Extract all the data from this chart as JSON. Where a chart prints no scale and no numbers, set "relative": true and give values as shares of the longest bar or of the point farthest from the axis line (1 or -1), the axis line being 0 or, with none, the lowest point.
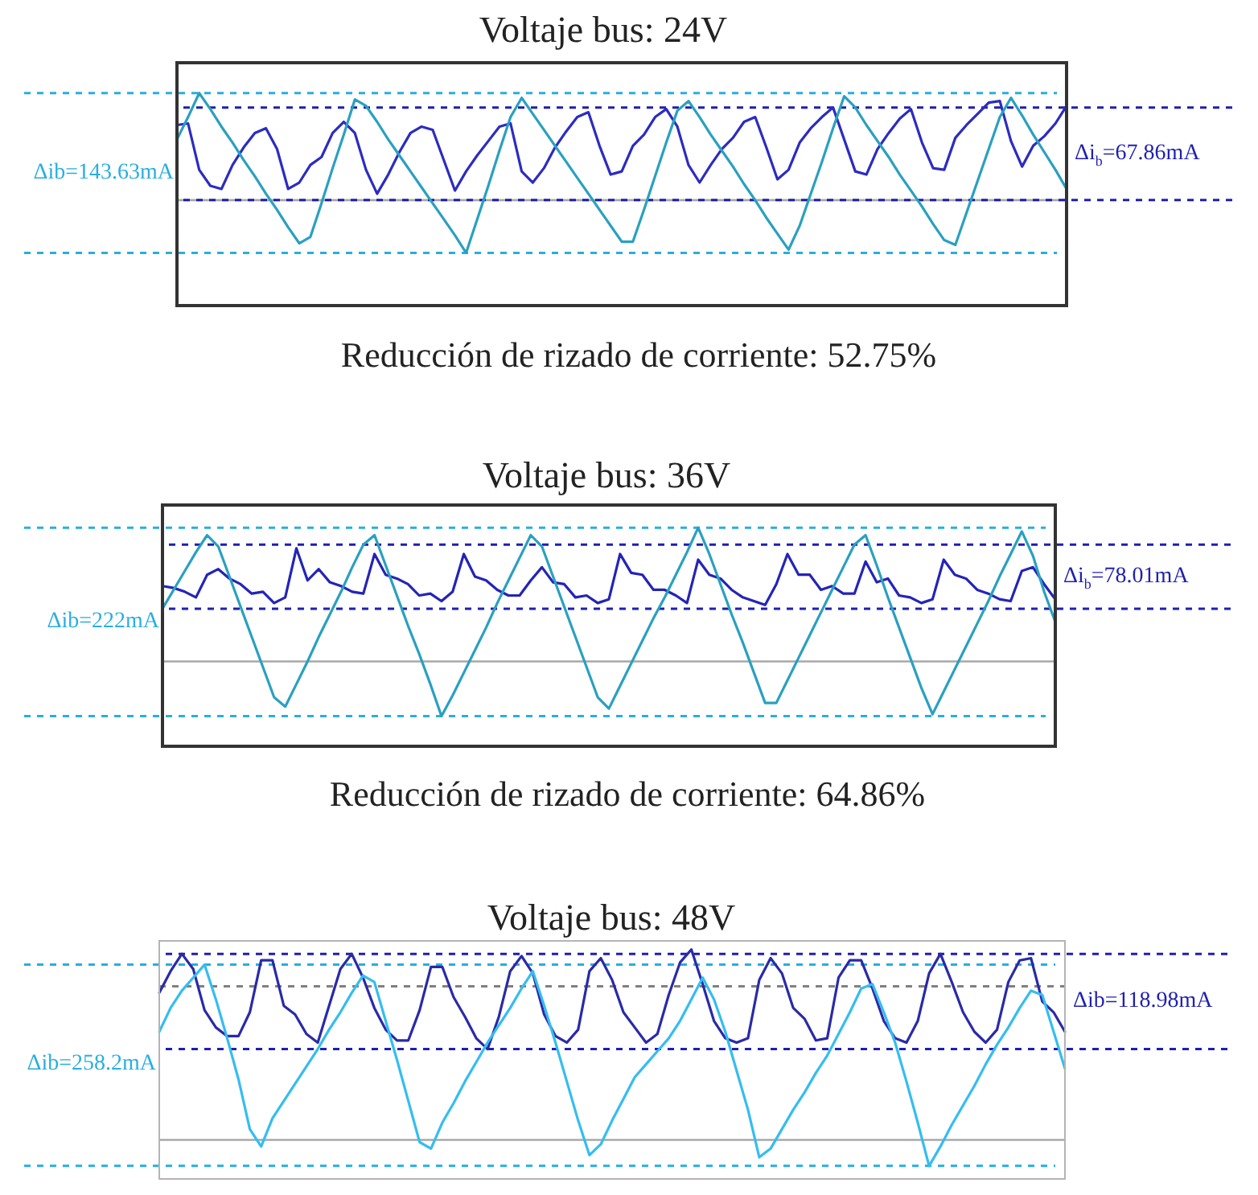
{
  "chart_data": [
    {
      "type": "line",
      "title": "Voltaje bus: 24V",
      "relative": true,
      "categories": [
        null,
        null,
        null,
        null,
        null,
        null,
        null,
        null,
        null,
        null,
        null,
        null,
        null,
        null,
        null,
        null,
        null,
        null,
        null,
        null,
        null,
        null,
        null,
        null,
        null,
        null,
        null,
        null,
        null,
        null,
        null,
        null,
        null,
        null,
        null,
        null,
        null,
        null,
        null,
        null,
        null,
        null,
        null,
        null,
        null,
        null,
        null,
        null,
        null,
        null,
        null,
        null,
        null,
        null,
        null,
        null,
        null,
        null,
        null,
        null,
        null,
        null,
        null,
        null,
        null,
        null,
        null,
        null,
        null,
        null,
        null,
        null,
        null,
        null,
        null,
        null,
        null,
        null,
        null,
        null,
        null
      ],
      "series": [
        {
          "color": "#2aa0c0",
          "values": [
            0.71,
            0.85,
            1.0,
            0.9,
            0.79,
            0.69,
            0.58,
            0.48,
            0.37,
            0.27,
            0.16,
            0.06,
            0.1,
            0.31,
            0.53,
            0.74,
            0.96,
            0.92,
            0.82,
            0.71,
            0.61,
            0.51,
            0.41,
            0.31,
            0.21,
            0.11,
            0.0,
            0.21,
            0.42,
            0.64,
            0.85,
            0.97,
            0.87,
            0.77,
            0.67,
            0.57,
            0.47,
            0.37,
            0.27,
            0.17,
            0.07,
            0.07,
            0.27,
            0.48,
            0.69,
            0.89,
            0.95,
            0.85,
            0.74,
            0.64,
            0.54,
            0.43,
            0.33,
            0.22,
            0.12,
            0.02,
            0.17,
            0.37,
            0.57,
            0.78,
            0.98,
            0.91,
            0.8,
            0.7,
            0.6,
            0.49,
            0.39,
            0.29,
            0.18,
            0.08,
            0.05,
            0.25,
            0.45,
            0.65,
            0.85,
            0.97,
            0.86,
            0.74,
            0.63,
            0.52,
            0.4
          ]
        },
        {
          "color": "#2c2cc0",
          "values": [
            0.8,
            0.81,
            0.52,
            0.42,
            0.4,
            0.55,
            0.66,
            0.75,
            0.78,
            0.65,
            0.4,
            0.44,
            0.55,
            0.6,
            0.75,
            0.82,
            0.75,
            0.52,
            0.37,
            0.49,
            0.63,
            0.75,
            0.79,
            0.77,
            0.58,
            0.39,
            0.51,
            0.61,
            0.7,
            0.79,
            0.81,
            0.51,
            0.44,
            0.53,
            0.66,
            0.76,
            0.85,
            0.88,
            0.67,
            0.49,
            0.51,
            0.67,
            0.74,
            0.85,
            0.9,
            0.79,
            0.55,
            0.44,
            0.55,
            0.65,
            0.72,
            0.82,
            0.85,
            0.66,
            0.46,
            0.52,
            0.69,
            0.78,
            0.85,
            0.91,
            0.71,
            0.51,
            0.49,
            0.65,
            0.75,
            0.84,
            0.9,
            0.69,
            0.53,
            0.52,
            0.72,
            0.8,
            0.87,
            0.94,
            0.95,
            0.7,
            0.54,
            0.67,
            0.73,
            0.81,
            0.92
          ]
        }
      ],
      "ref_lines": [
        {
          "axis": "y",
          "value": 0.33,
          "color": "#a8a8a8"
        },
        {
          "axis": "y",
          "value": 1,
          "color": "#29aee0",
          "line_style": "dashed"
        },
        {
          "axis": "y",
          "value": 0,
          "color": "#29aee0",
          "line_style": "dashed"
        },
        {
          "axis": "y",
          "value": 0.91,
          "color": "#1f1fb0",
          "line_style": "dashed"
        },
        {
          "axis": "y",
          "value": 0.33,
          "color": "#1f1fb0",
          "line_style": "dashed"
        }
      ],
      "annotations": [
        "Reducción de rizado de corriente: 52.75%",
        "Δib=143.63mA",
        "Δi$_{b}$=67.86mA"
      ]
    },
    {
      "type": "line",
      "title": "Voltaje bus: 36V",
      "relative": true,
      "categories": [
        null,
        null,
        null,
        null,
        null,
        null,
        null,
        null,
        null,
        null,
        null,
        null,
        null,
        null,
        null,
        null,
        null,
        null,
        null,
        null,
        null,
        null,
        null,
        null,
        null,
        null,
        null,
        null,
        null,
        null,
        null,
        null,
        null,
        null,
        null,
        null,
        null,
        null,
        null,
        null,
        null,
        null,
        null,
        null,
        null,
        null,
        null,
        null,
        null,
        null,
        null,
        null,
        null,
        null,
        null,
        null,
        null,
        null,
        null,
        null,
        null,
        null,
        null,
        null,
        null,
        null,
        null,
        null,
        null,
        null,
        null,
        null,
        null,
        null,
        null,
        null,
        null,
        null,
        null,
        null,
        null
      ],
      "series": [
        {
          "color": "#2aa0c0",
          "values": [
            0.57,
            0.67,
            0.77,
            0.87,
            0.96,
            0.9,
            0.74,
            0.58,
            0.42,
            0.26,
            0.1,
            0.05,
            0.17,
            0.29,
            0.42,
            0.54,
            0.66,
            0.79,
            0.91,
            0.96,
            0.8,
            0.64,
            0.48,
            0.33,
            0.17,
            0.0,
            0.11,
            0.23,
            0.35,
            0.47,
            0.6,
            0.72,
            0.84,
            0.96,
            0.9,
            0.74,
            0.58,
            0.42,
            0.26,
            0.1,
            0.04,
            0.16,
            0.28,
            0.4,
            0.52,
            0.63,
            0.75,
            0.87,
            1.0,
            0.86,
            0.7,
            0.54,
            0.39,
            0.23,
            0.07,
            0.07,
            0.19,
            0.31,
            0.43,
            0.55,
            0.67,
            0.79,
            0.91,
            0.96,
            0.8,
            0.63,
            0.47,
            0.31,
            0.15,
            0.01,
            0.13,
            0.25,
            0.37,
            0.49,
            0.61,
            0.74,
            0.86,
            0.98,
            0.85,
            0.66,
            0.5
          ]
        },
        {
          "color": "#2424b8",
          "values": [
            0.69,
            0.68,
            0.66,
            0.63,
            0.75,
            0.78,
            0.73,
            0.7,
            0.65,
            0.66,
            0.6,
            0.63,
            0.89,
            0.72,
            0.78,
            0.71,
            0.69,
            0.66,
            0.65,
            0.86,
            0.75,
            0.73,
            0.7,
            0.64,
            0.65,
            0.61,
            0.66,
            0.86,
            0.74,
            0.72,
            0.67,
            0.64,
            0.64,
            0.72,
            0.79,
            0.71,
            0.7,
            0.63,
            0.64,
            0.6,
            0.62,
            0.86,
            0.76,
            0.75,
            0.67,
            0.67,
            0.64,
            0.6,
            0.83,
            0.75,
            0.73,
            0.67,
            0.63,
            0.61,
            0.59,
            0.7,
            0.86,
            0.75,
            0.75,
            0.67,
            0.69,
            0.65,
            0.65,
            0.82,
            0.71,
            0.73,
            0.64,
            0.63,
            0.6,
            0.62,
            0.83,
            0.75,
            0.73,
            0.67,
            0.65,
            0.62,
            0.61,
            0.77,
            0.79,
            0.7,
            0.62
          ]
        }
      ],
      "ref_lines": [
        {
          "axis": "y",
          "value": 0.29,
          "color": "#a8a8a8"
        },
        {
          "axis": "y",
          "value": 1,
          "color": "#29aee0",
          "line_style": "dashed"
        },
        {
          "axis": "y",
          "value": 0,
          "color": "#29aee0",
          "line_style": "dashed"
        },
        {
          "axis": "y",
          "value": 0.91,
          "color": "#1f1fb0",
          "line_style": "dashed"
        },
        {
          "axis": "y",
          "value": 0.57,
          "color": "#1f1fb0",
          "line_style": "dashed"
        }
      ],
      "annotations": [
        "Reducción de rizado de corriente: 64.86%",
        "Δib=222mA",
        "Δi$_{b}$=78.01mA"
      ]
    },
    {
      "type": "line",
      "title": "Voltaje bus: 48V",
      "relative": true,
      "categories": [
        null,
        null,
        null,
        null,
        null,
        null,
        null,
        null,
        null,
        null,
        null,
        null,
        null,
        null,
        null,
        null,
        null,
        null,
        null,
        null,
        null,
        null,
        null,
        null,
        null,
        null,
        null,
        null,
        null,
        null,
        null,
        null,
        null,
        null,
        null,
        null,
        null,
        null,
        null,
        null,
        null,
        null,
        null,
        null,
        null,
        null,
        null,
        null,
        null,
        null,
        null,
        null,
        null,
        null,
        null,
        null,
        null,
        null,
        null,
        null,
        null,
        null,
        null,
        null,
        null,
        null,
        null,
        null,
        null,
        null,
        null,
        null,
        null,
        null,
        null,
        null,
        null,
        null,
        null,
        null,
        null
      ],
      "series": [
        {
          "color": "#35bdf0",
          "values": [
            0.62,
            0.73,
            0.81,
            0.87,
            0.93,
            0.77,
            0.59,
            0.4,
            0.17,
            0.09,
            0.22,
            0.3,
            0.38,
            0.46,
            0.54,
            0.63,
            0.71,
            0.8,
            0.88,
            0.85,
            0.67,
            0.49,
            0.3,
            0.11,
            0.08,
            0.2,
            0.29,
            0.39,
            0.48,
            0.57,
            0.65,
            0.73,
            0.82,
            0.9,
            0.74,
            0.57,
            0.39,
            0.21,
            0.05,
            0.1,
            0.21,
            0.31,
            0.41,
            0.47,
            0.53,
            0.59,
            0.67,
            0.77,
            0.87,
            0.77,
            0.62,
            0.44,
            0.26,
            0.04,
            0.08,
            0.17,
            0.26,
            0.34,
            0.43,
            0.51,
            0.61,
            0.71,
            0.82,
            0.84,
            0.71,
            0.57,
            0.39,
            0.2,
            0.0,
            0.09,
            0.19,
            0.28,
            0.37,
            0.47,
            0.56,
            0.64,
            0.73,
            0.81,
            0.79,
            0.62,
            0.45
          ]
        },
        {
          "color": "#2a2aa8",
          "values": [
            0.8,
            0.9,
            0.98,
            0.91,
            0.72,
            0.64,
            0.6,
            0.6,
            0.71,
            0.95,
            0.95,
            0.74,
            0.7,
            0.61,
            0.57,
            0.74,
            0.91,
            0.98,
            0.87,
            0.73,
            0.63,
            0.58,
            0.58,
            0.72,
            0.92,
            0.92,
            0.78,
            0.69,
            0.59,
            0.54,
            0.69,
            0.9,
            0.97,
            0.89,
            0.7,
            0.6,
            0.57,
            0.63,
            0.9,
            0.96,
            0.86,
            0.71,
            0.64,
            0.57,
            0.61,
            0.79,
            0.94,
            1.0,
            0.84,
            0.67,
            0.59,
            0.57,
            0.59,
            0.86,
            0.96,
            0.89,
            0.73,
            0.68,
            0.58,
            0.59,
            0.87,
            0.95,
            0.95,
            0.82,
            0.67,
            0.59,
            0.57,
            0.67,
            0.89,
            0.98,
            0.85,
            0.71,
            0.62,
            0.57,
            0.63,
            0.85,
            0.95,
            0.96,
            0.76,
            0.71,
            0.62
          ]
        }
      ],
      "ref_lines": [
        {
          "axis": "y",
          "value": 0.12,
          "color": "#a8a8a8"
        },
        {
          "axis": "y",
          "value": 0.83,
          "color": "#808080",
          "line_style": "dashed"
        },
        {
          "axis": "y",
          "value": 0.93,
          "color": "#29aee0",
          "line_style": "dashed"
        },
        {
          "axis": "y",
          "value": 0,
          "color": "#29aee0",
          "line_style": "dashed"
        },
        {
          "axis": "y",
          "value": 0.98,
          "color": "#1f1fb0",
          "line_style": "dashed"
        },
        {
          "axis": "y",
          "value": 0.54,
          "color": "#1f1fb0",
          "line_style": "dashed"
        }
      ],
      "annotations": [
        "Δib=258.2mA",
        "Δib=118.98mA"
      ]
    }
  ]
}
